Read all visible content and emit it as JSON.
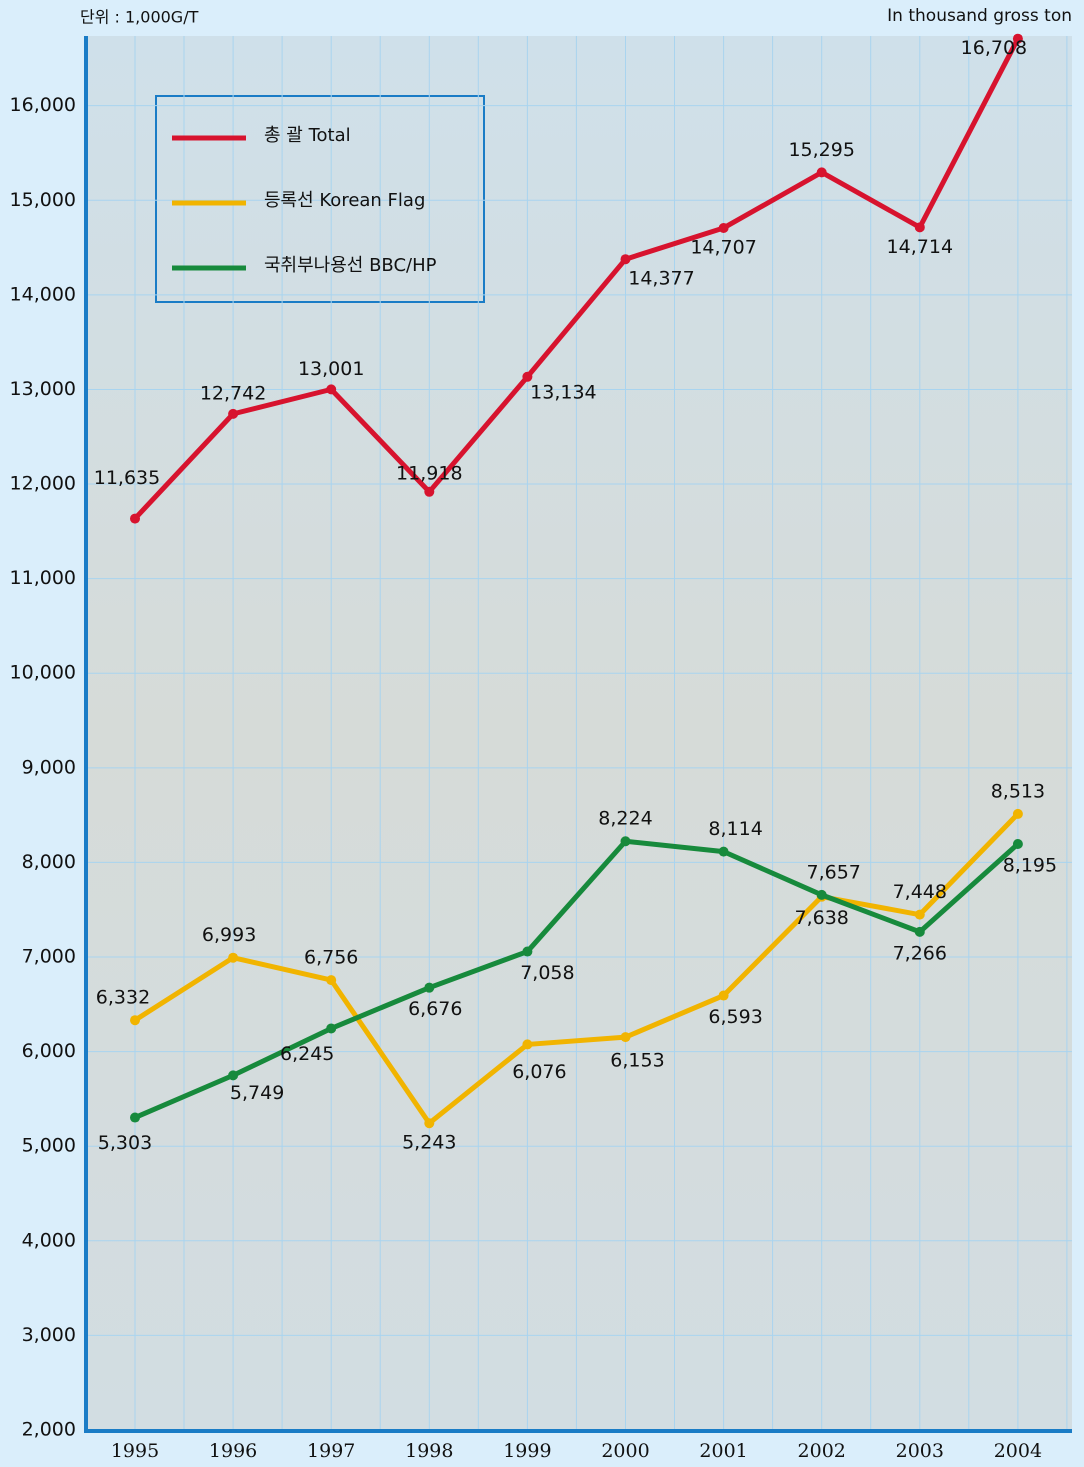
{
  "chart_data": {
    "type": "line",
    "unit_label": "단위 : 1,000G/T",
    "unit_label_en": "In thousand gross ton",
    "categories": [
      "1995",
      "1996",
      "1997",
      "1998",
      "1999",
      "2000",
      "2001",
      "2002",
      "2003",
      "2004"
    ],
    "series": [
      {
        "name": "총 괄  Total",
        "color": "#d7132e",
        "values": [
          11635,
          12742,
          13001,
          11918,
          13134,
          14377,
          14707,
          15295,
          14714,
          16708
        ],
        "value_labels": [
          "11,635",
          "12,742",
          "13,001",
          "11,918",
          "13,134",
          "14,377",
          "14,707",
          "15,295",
          "14,714",
          "16,708"
        ]
      },
      {
        "name": "등록선  Korean Flag",
        "color": "#f1b400",
        "values": [
          6332,
          6993,
          6756,
          5243,
          6076,
          6153,
          6593,
          7638,
          7448,
          8513
        ],
        "value_labels": [
          "6,332",
          "6,993",
          "6,756",
          "5,243",
          "6,076",
          "6,153",
          "6,593",
          "7,638",
          "7,448",
          "8,513"
        ]
      },
      {
        "name": "국취부나용선  BBC/HP",
        "color": "#178a3c",
        "values": [
          5303,
          5749,
          6245,
          6676,
          7058,
          8224,
          8114,
          7657,
          7266,
          8195
        ],
        "value_labels": [
          "5,303",
          "5,749",
          "6,245",
          "6,676",
          "7,058",
          "8,224",
          "8,114",
          "7,657",
          "7,266",
          "8,195"
        ]
      }
    ],
    "ylim": [
      2000,
      16800
    ],
    "yticks": [
      {
        "value": 2000,
        "label": "2,000"
      },
      {
        "value": 3000,
        "label": "3,000"
      },
      {
        "value": 4000,
        "label": "4,000"
      },
      {
        "value": 5000,
        "label": "5,000"
      },
      {
        "value": 6000,
        "label": "6,000"
      },
      {
        "value": 7000,
        "label": "7,000"
      },
      {
        "value": 8000,
        "label": "8,000"
      },
      {
        "value": 9000,
        "label": "9,000"
      },
      {
        "value": 10000,
        "label": "10,000"
      },
      {
        "value": 11000,
        "label": "11,000"
      },
      {
        "value": 12000,
        "label": "12,000"
      },
      {
        "value": 13000,
        "label": "13,000"
      },
      {
        "value": 14000,
        "label": "14,000"
      },
      {
        "value": 15000,
        "label": "15,000"
      },
      {
        "value": 16000,
        "label": "16,000"
      }
    ],
    "grid": true
  }
}
